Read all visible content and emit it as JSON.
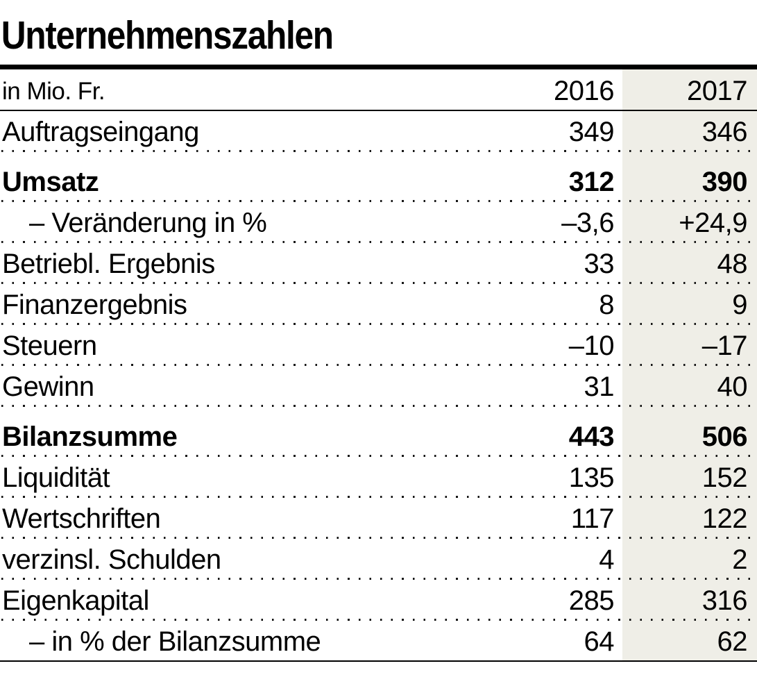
{
  "title": "Unternehmenszahlen",
  "table": {
    "unit_label": "in Mio. Fr.",
    "columns": [
      "2016",
      "2017"
    ],
    "rows": [
      {
        "label": "Auftragseingang",
        "v2016": "349",
        "v2017": "346",
        "bold": false,
        "indent": false
      },
      {
        "label": "Umsatz",
        "v2016": "312",
        "v2017": "390",
        "bold": true,
        "indent": false
      },
      {
        "label": "– Veränderung in %",
        "v2016": "–3,6",
        "v2017": "+24,9",
        "bold": false,
        "indent": true
      },
      {
        "label": "Betriebl. Ergebnis",
        "v2016": "33",
        "v2017": "48",
        "bold": false,
        "indent": false
      },
      {
        "label": "Finanzergebnis",
        "v2016": "8",
        "v2017": "9",
        "bold": false,
        "indent": false
      },
      {
        "label": "Steuern",
        "v2016": "–10",
        "v2017": "–17",
        "bold": false,
        "indent": false
      },
      {
        "label": "Gewinn",
        "v2016": "31",
        "v2017": "40",
        "bold": false,
        "indent": false
      },
      {
        "label": "Bilanzsumme",
        "v2016": "443",
        "v2017": "506",
        "bold": true,
        "indent": false
      },
      {
        "label": "Liquidität",
        "v2016": "135",
        "v2017": "152",
        "bold": false,
        "indent": false
      },
      {
        "label": "Wertschriften",
        "v2016": "117",
        "v2017": "122",
        "bold": false,
        "indent": false
      },
      {
        "label": "verzinsl. Schulden",
        "v2016": "4",
        "v2017": "2",
        "bold": false,
        "indent": false
      },
      {
        "label": "Eigenkapital",
        "v2016": "285",
        "v2017": "316",
        "bold": false,
        "indent": false
      },
      {
        "label": "– in % der Bilanzsumme",
        "v2016": "64",
        "v2017": "62",
        "bold": false,
        "indent": true
      }
    ]
  },
  "colors": {
    "highlight_column_background": "#efeee7",
    "text": "#000000",
    "rule": "#000000"
  },
  "chart_data": {
    "type": "table",
    "title": "Unternehmenszahlen",
    "unit": "in Mio. Fr.",
    "categories": [
      "Auftragseingang",
      "Umsatz",
      "Veränderung in %",
      "Betriebl. Ergebnis",
      "Finanzergebnis",
      "Steuern",
      "Gewinn",
      "Bilanzsumme",
      "Liquidität",
      "Wertschriften",
      "verzinsl. Schulden",
      "Eigenkapital",
      "Eigenkapital in % der Bilanzsumme"
    ],
    "series": [
      {
        "name": "2016",
        "values": [
          349,
          312,
          -3.6,
          33,
          8,
          -10,
          31,
          443,
          135,
          117,
          4,
          285,
          64
        ]
      },
      {
        "name": "2017",
        "values": [
          346,
          390,
          24.9,
          48,
          9,
          -17,
          40,
          506,
          152,
          122,
          2,
          316,
          62
        ]
      }
    ],
    "bold_rows": [
      "Umsatz",
      "Bilanzsumme"
    ],
    "layout_hints": {
      "highlighted_column": "2017",
      "row_separators": "dotted",
      "header_separator": "solid",
      "bottom_rule": "solid"
    }
  }
}
